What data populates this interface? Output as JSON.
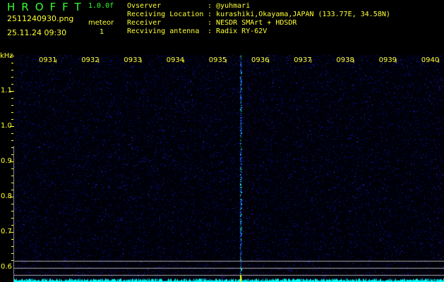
{
  "header": {
    "logo": "HROFFT",
    "version": "1.0.0f",
    "filename": "2511240930.png",
    "datetime": "25.11.24 09:30",
    "meteor_label": "meteor",
    "meteor_count": "1"
  },
  "info": [
    {
      "label": "Ovserver",
      "value": "@yuhmari"
    },
    {
      "label": "Receiving Location",
      "value": "kurashiki,Okayama,JAPAN (133.77E, 34.58N)"
    },
    {
      "label": "Receiver",
      "value": "NESDR SMArt + HDSDR"
    },
    {
      "label": "Recviving antenna",
      "value": "Radix RY-62V"
    }
  ],
  "axis": {
    "unit": "kHz",
    "y_ticks": [
      "1.1",
      "1.0",
      "0.9",
      "0.8",
      "0.7",
      "0.6"
    ],
    "time_ticks": [
      "0931",
      "0932",
      "0933",
      "0934",
      "0935",
      "0936",
      "0937",
      "0938",
      "0939",
      "0940"
    ]
  },
  "colors": {
    "text": "#ffff33",
    "logo": "#33ff33",
    "noise": "#1010a0",
    "signal": "#22ccff",
    "baseline": "#00ffff"
  }
}
